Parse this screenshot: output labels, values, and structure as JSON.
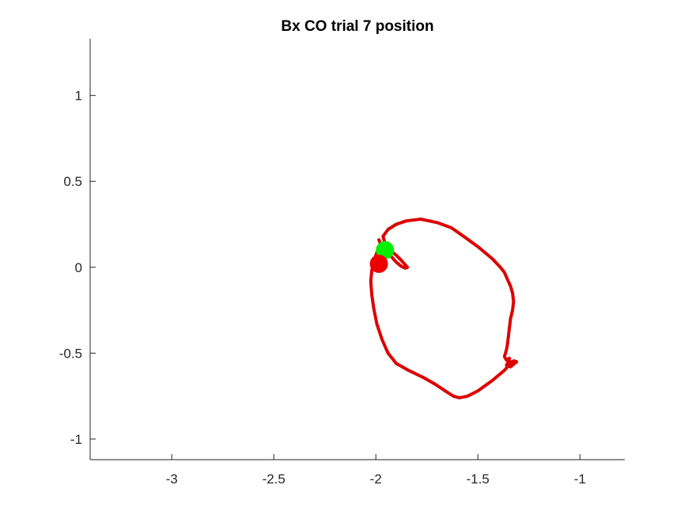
{
  "chart_data": {
    "type": "line",
    "title": "Bx  CO trial 7 position",
    "xlabel": "",
    "ylabel": "",
    "xlim": [
      -3.4,
      -0.78
    ],
    "ylim": [
      -1.12,
      1.33
    ],
    "x_ticks": [
      -3,
      -2.5,
      -2,
      -1.5,
      -1
    ],
    "x_tick_labels": [
      "-3",
      "-2.5",
      "-2",
      "-1.5",
      "-1"
    ],
    "y_ticks": [
      -1,
      -0.5,
      0,
      0.5,
      1
    ],
    "y_tick_labels": [
      "-1",
      "-0.5",
      "0",
      "0.5",
      "1"
    ],
    "grid": false,
    "box": "left-bottom",
    "series": [
      {
        "color": "#dd0000",
        "x": [
          -1.95,
          -1.92,
          -1.9,
          -1.875,
          -1.86,
          -1.845,
          -1.855,
          -1.875,
          -1.9,
          -1.93,
          -1.95,
          -1.965,
          -1.94,
          -1.9,
          -1.85,
          -1.78,
          -1.7,
          -1.63,
          -1.57,
          -1.5,
          -1.43,
          -1.39,
          -1.37,
          -1.355,
          -1.34,
          -1.33,
          -1.325,
          -1.33,
          -1.34,
          -1.345,
          -1.35,
          -1.355,
          -1.36,
          -1.365,
          -1.37,
          -1.36,
          -1.345,
          -1.35,
          -1.36,
          -1.34,
          -1.32,
          -1.31,
          -1.322,
          -1.335,
          -1.34,
          -1.37,
          -1.43,
          -1.5,
          -1.55,
          -1.59,
          -1.62,
          -1.66,
          -1.71,
          -1.77,
          -1.84,
          -1.9,
          -1.94,
          -1.97,
          -1.995,
          -2.01,
          -2.02,
          -2.025,
          -2.02,
          -2.01,
          -2.0,
          -1.99,
          -1.975,
          -1.985
        ],
        "y": [
          0.1,
          0.09,
          0.07,
          0.04,
          0.02,
          0.0,
          -0.005,
          0.005,
          0.03,
          0.07,
          0.12,
          0.18,
          0.22,
          0.25,
          0.27,
          0.28,
          0.26,
          0.23,
          0.18,
          0.12,
          0.05,
          0.0,
          -0.03,
          -0.07,
          -0.11,
          -0.15,
          -0.2,
          -0.25,
          -0.3,
          -0.35,
          -0.4,
          -0.45,
          -0.48,
          -0.5,
          -0.52,
          -0.54,
          -0.53,
          -0.55,
          -0.57,
          -0.58,
          -0.56,
          -0.55,
          -0.545,
          -0.55,
          -0.56,
          -0.6,
          -0.66,
          -0.72,
          -0.75,
          -0.76,
          -0.75,
          -0.72,
          -0.68,
          -0.64,
          -0.6,
          -0.56,
          -0.5,
          -0.42,
          -0.33,
          -0.24,
          -0.16,
          -0.08,
          -0.02,
          0.03,
          0.07,
          0.1,
          0.13,
          0.16
        ]
      }
    ],
    "markers": [
      {
        "x": -1.955,
        "y": 0.1,
        "color": "#00ee00"
      },
      {
        "x": -1.985,
        "y": 0.02,
        "color": "#ee0000"
      }
    ]
  }
}
